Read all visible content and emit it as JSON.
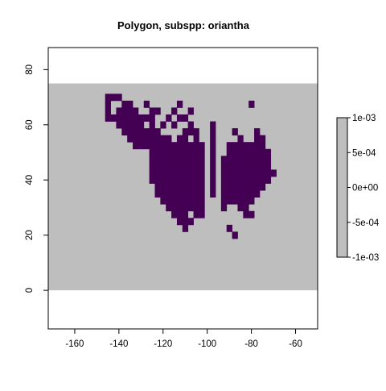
{
  "chart_data": {
    "type": "heatmap",
    "title": "Polygon, subspp: oriantha",
    "xlabel": "",
    "ylabel": "",
    "xlim": [
      -172,
      -50
    ],
    "ylim": [
      -14,
      88
    ],
    "x_ticks": [
      -160,
      -140,
      -120,
      -100,
      -80,
      -60
    ],
    "y_ticks": [
      0,
      20,
      40,
      60,
      80
    ],
    "background_extent": {
      "x": [
        -172,
        -50
      ],
      "y": [
        0,
        75
      ]
    },
    "cell_size": 2.5,
    "grid": false,
    "colors": {
      "background_fill": "#bebebe",
      "presence_fill": "#440154",
      "axis": "#000000"
    },
    "presence_rows": [
      {
        "y": 70,
        "x": [
          -145,
          -142.5,
          -140
        ]
      },
      {
        "y": 67.5,
        "x": [
          -145,
          -137.5,
          -135,
          -127.5,
          -112.5,
          -80
        ]
      },
      {
        "y": 65,
        "x": [
          -145,
          -140,
          -137.5,
          -135,
          -132.5,
          -125,
          -122.5,
          -115,
          -107.5
        ]
      },
      {
        "y": 62.5,
        "x": [
          -145,
          -142.5,
          -140,
          -137.5,
          -135,
          -132.5,
          -130,
          -127.5,
          -125,
          -117.5,
          -112.5,
          -110
        ]
      },
      {
        "y": 60,
        "x": [
          -140,
          -137.5,
          -135,
          -132.5,
          -130,
          -125,
          -120,
          -115,
          -107.5,
          -97.5
        ]
      },
      {
        "y": 57.5,
        "x": [
          -137.5,
          -135,
          -132.5,
          -130,
          -127.5,
          -125,
          -122.5,
          -110,
          -107.5,
          -105,
          -97.5,
          -87.5,
          -77.5
        ]
      },
      {
        "y": 55,
        "x": [
          -135,
          -132.5,
          -130,
          -127.5,
          -125,
          -122.5,
          -120,
          -117.5,
          -112.5,
          -110,
          -105,
          -97.5,
          -85,
          -77.5,
          -75
        ]
      },
      {
        "y": 52.5,
        "x": [
          -132.5,
          -130,
          -127.5,
          -125,
          -122.5,
          -120,
          -117.5,
          -115,
          -112.5,
          -110,
          -107.5,
          -105,
          -102.5,
          -97.5,
          -90,
          -87.5,
          -85,
          -82.5,
          -80,
          -77.5,
          -75
        ]
      },
      {
        "y": 50,
        "x": [
          -125,
          -122.5,
          -120,
          -117.5,
          -115,
          -112.5,
          -110,
          -107.5,
          -105,
          -102.5,
          -97.5,
          -90,
          -87.5,
          -85,
          -82.5,
          -80,
          -77.5,
          -75,
          -72.5
        ]
      },
      {
        "y": 47.5,
        "x": [
          -125,
          -122.5,
          -120,
          -117.5,
          -115,
          -112.5,
          -110,
          -107.5,
          -105,
          -102.5,
          -97.5,
          -92.5,
          -90,
          -87.5,
          -85,
          -82.5,
          -80,
          -77.5,
          -75,
          -72.5
        ]
      },
      {
        "y": 45,
        "x": [
          -125,
          -122.5,
          -120,
          -117.5,
          -115,
          -112.5,
          -110,
          -107.5,
          -105,
          -102.5,
          -97.5,
          -92.5,
          -90,
          -87.5,
          -85,
          -82.5,
          -80,
          -77.5,
          -75,
          -72.5
        ]
      },
      {
        "y": 42.5,
        "x": [
          -125,
          -122.5,
          -120,
          -117.5,
          -115,
          -112.5,
          -110,
          -107.5,
          -105,
          -102.5,
          -97.5,
          -92.5,
          -90,
          -87.5,
          -85,
          -82.5,
          -80,
          -77.5,
          -75,
          -72.5,
          -70
        ]
      },
      {
        "y": 40,
        "x": [
          -125,
          -122.5,
          -120,
          -117.5,
          -115,
          -112.5,
          -110,
          -107.5,
          -105,
          -102.5,
          -97.5,
          -92.5,
          -90,
          -87.5,
          -85,
          -82.5,
          -80,
          -77.5,
          -75,
          -72.5
        ]
      },
      {
        "y": 37.5,
        "x": [
          -122.5,
          -120,
          -117.5,
          -115,
          -112.5,
          -110,
          -107.5,
          -105,
          -102.5,
          -97.5,
          -92.5,
          -90,
          -87.5,
          -85,
          -82.5,
          -80,
          -77.5,
          -75
        ]
      },
      {
        "y": 35,
        "x": [
          -122.5,
          -120,
          -117.5,
          -115,
          -112.5,
          -110,
          -107.5,
          -105,
          -102.5,
          -97.5,
          -92.5,
          -90,
          -87.5,
          -85,
          -82.5,
          -80,
          -77.5
        ]
      },
      {
        "y": 32.5,
        "x": [
          -120,
          -117.5,
          -115,
          -112.5,
          -110,
          -107.5,
          -105,
          -102.5,
          -92.5,
          -90,
          -87.5,
          -85,
          -82.5,
          -80
        ]
      },
      {
        "y": 30,
        "x": [
          -117.5,
          -115,
          -112.5,
          -110,
          -107.5,
          -105,
          -102.5,
          -92.5,
          -85,
          -82.5
        ]
      },
      {
        "y": 27.5,
        "x": [
          -115,
          -112.5,
          -110,
          -105,
          -102.5,
          -82.5,
          -80
        ]
      },
      {
        "y": 25,
        "x": [
          -112.5,
          -110,
          -107.5
        ]
      },
      {
        "y": 22.5,
        "x": [
          -110,
          -90
        ]
      },
      {
        "y": 20,
        "x": [
          -87.5
        ]
      }
    ]
  },
  "legend": {
    "ticks": [
      "1e-03",
      "5e-04",
      "0e+00",
      "-5e-04",
      "-1e-03"
    ],
    "fill": "#bebebe"
  }
}
